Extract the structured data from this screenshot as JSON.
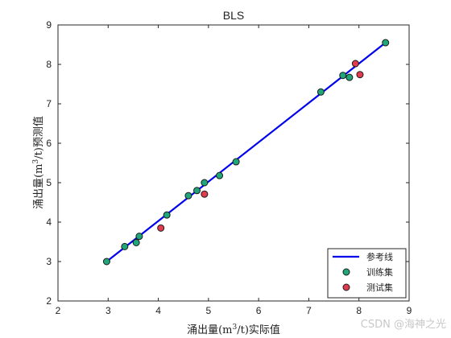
{
  "chart_data": {
    "type": "scatter",
    "title": "BLS",
    "xlabel": "涌出量(m3/t)实际值",
    "ylabel": "涌出量(m3/t)预测值",
    "xlabel_parts": {
      "before": "涌出量(m",
      "sup": "3",
      "after": "/t)实际值"
    },
    "ylabel_parts": {
      "before": "涌出量(m",
      "sup": "3",
      "after": "/t)预测值"
    },
    "xlim": [
      2,
      9
    ],
    "ylim": [
      2,
      9
    ],
    "xticks": [
      "2",
      "3",
      "4",
      "5",
      "6",
      "7",
      "8",
      "9"
    ],
    "yticks": [
      "2",
      "3",
      "4",
      "5",
      "6",
      "7",
      "8",
      "9"
    ],
    "grid": false,
    "legend_position": "bottom-right",
    "series": [
      {
        "name": "参考线",
        "kind": "line",
        "color": "#0000ee",
        "x": [
          2.97,
          8.53
        ],
        "y": [
          3.0,
          8.55
        ]
      },
      {
        "name": "训练集",
        "kind": "scatter",
        "color": "#1fa67a",
        "x": [
          2.97,
          3.33,
          3.56,
          3.62,
          4.17,
          4.6,
          4.77,
          4.92,
          5.22,
          5.55,
          7.24,
          7.68,
          7.81,
          8.53
        ],
        "y": [
          3.0,
          3.38,
          3.48,
          3.64,
          4.18,
          4.67,
          4.8,
          5.0,
          5.18,
          5.53,
          7.3,
          7.72,
          7.67,
          8.55
        ]
      },
      {
        "name": "测试集",
        "kind": "scatter",
        "color": "#e03c4e",
        "x": [
          4.05,
          4.92,
          7.93,
          8.02
        ],
        "y": [
          3.85,
          4.71,
          8.02,
          7.74
        ]
      }
    ]
  },
  "watermark": "CSDN @海神之光"
}
